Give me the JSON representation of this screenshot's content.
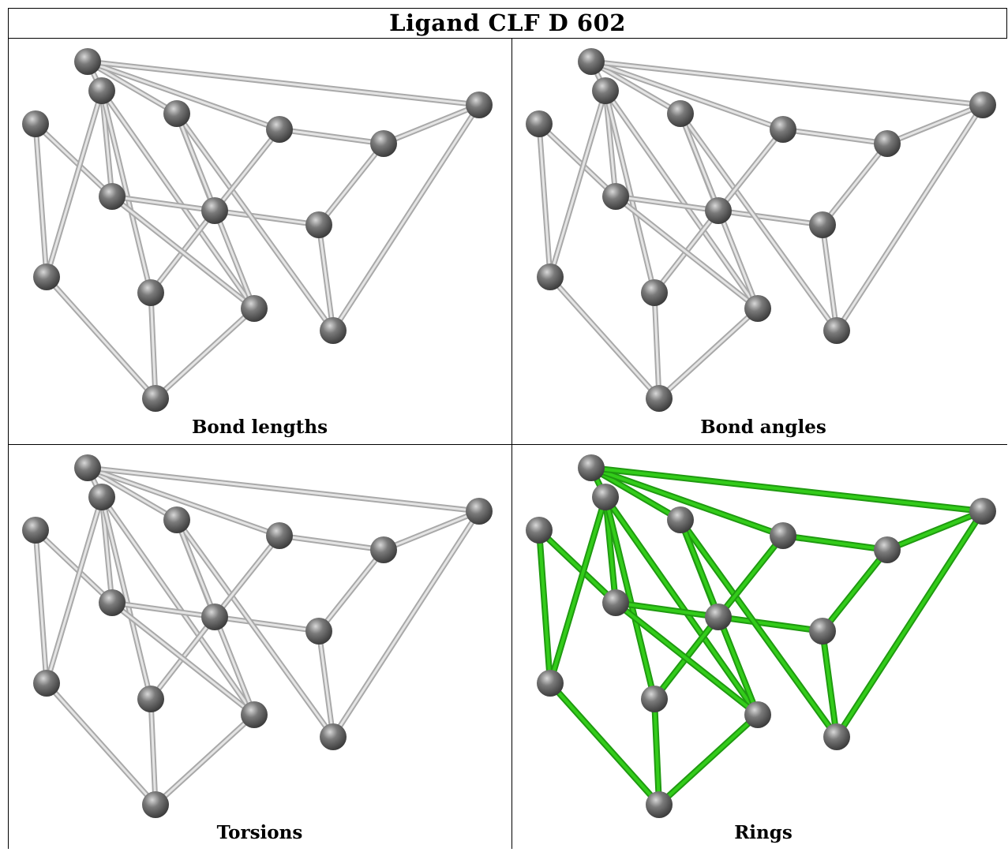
{
  "title": "Ligand CLF D 602",
  "panels": [
    {
      "caption": "Bond lengths",
      "bond_color": "gray"
    },
    {
      "caption": "Bond angles",
      "bond_color": "gray"
    },
    {
      "caption": "Torsions",
      "bond_color": "gray"
    },
    {
      "caption": "Rings",
      "bond_color": "green"
    }
  ],
  "colors": {
    "atom": "#7a7a7a",
    "gray_bond": "#c8c8c8",
    "green_bond": "#33cc1a"
  }
}
